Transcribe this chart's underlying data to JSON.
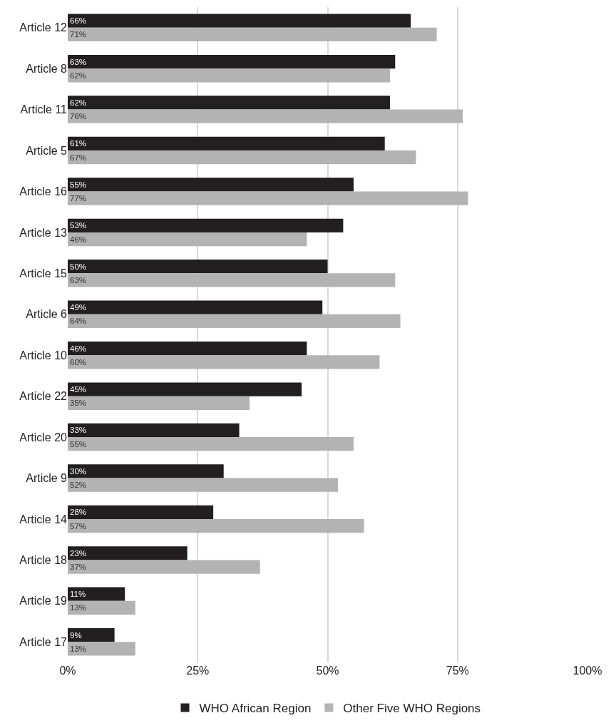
{
  "chart_data": {
    "type": "bar",
    "orientation": "horizontal",
    "categories": [
      "Article 12",
      "Article 8",
      "Article 11",
      "Article 5",
      "Article 16",
      "Article 13",
      "Article 15",
      "Article 6",
      "Article 10",
      "Article 22",
      "Article 20",
      "Article 9",
      "Article 14",
      "Article 18",
      "Article 19",
      "Article 17"
    ],
    "series": [
      {
        "name": "WHO African Region",
        "color": "#231f20",
        "values": [
          66,
          63,
          62,
          61,
          55,
          53,
          50,
          49,
          46,
          45,
          33,
          30,
          28,
          23,
          11,
          9
        ],
        "value_labels": [
          "66%",
          "63%",
          "62%",
          "61%",
          "55%",
          "53%",
          "50%",
          "49%",
          "46%",
          "45%",
          "33%",
          "30%",
          "28%",
          "23%",
          "11%",
          "9%"
        ]
      },
      {
        "name": "Other Five WHO Regions",
        "color": "#b3b3b3",
        "values": [
          71,
          62,
          76,
          67,
          77,
          46,
          63,
          64,
          60,
          35,
          55,
          52,
          57,
          37,
          13,
          13
        ],
        "value_labels": [
          "71%",
          "62%",
          "76%",
          "67%",
          "77%",
          "46%",
          "63%",
          "64%",
          "60%",
          "35%",
          "55%",
          "52%",
          "57%",
          "37%",
          "13%",
          "13%"
        ]
      }
    ],
    "xlim": [
      0,
      100
    ],
    "xticks": [
      {
        "value": 0,
        "label": "0%"
      },
      {
        "value": 25,
        "label": "25%"
      },
      {
        "value": 50,
        "label": "50%"
      },
      {
        "value": 75,
        "label": "75%"
      },
      {
        "value": 100,
        "label": "100%"
      }
    ],
    "grid": "x",
    "legend": "bottom"
  }
}
